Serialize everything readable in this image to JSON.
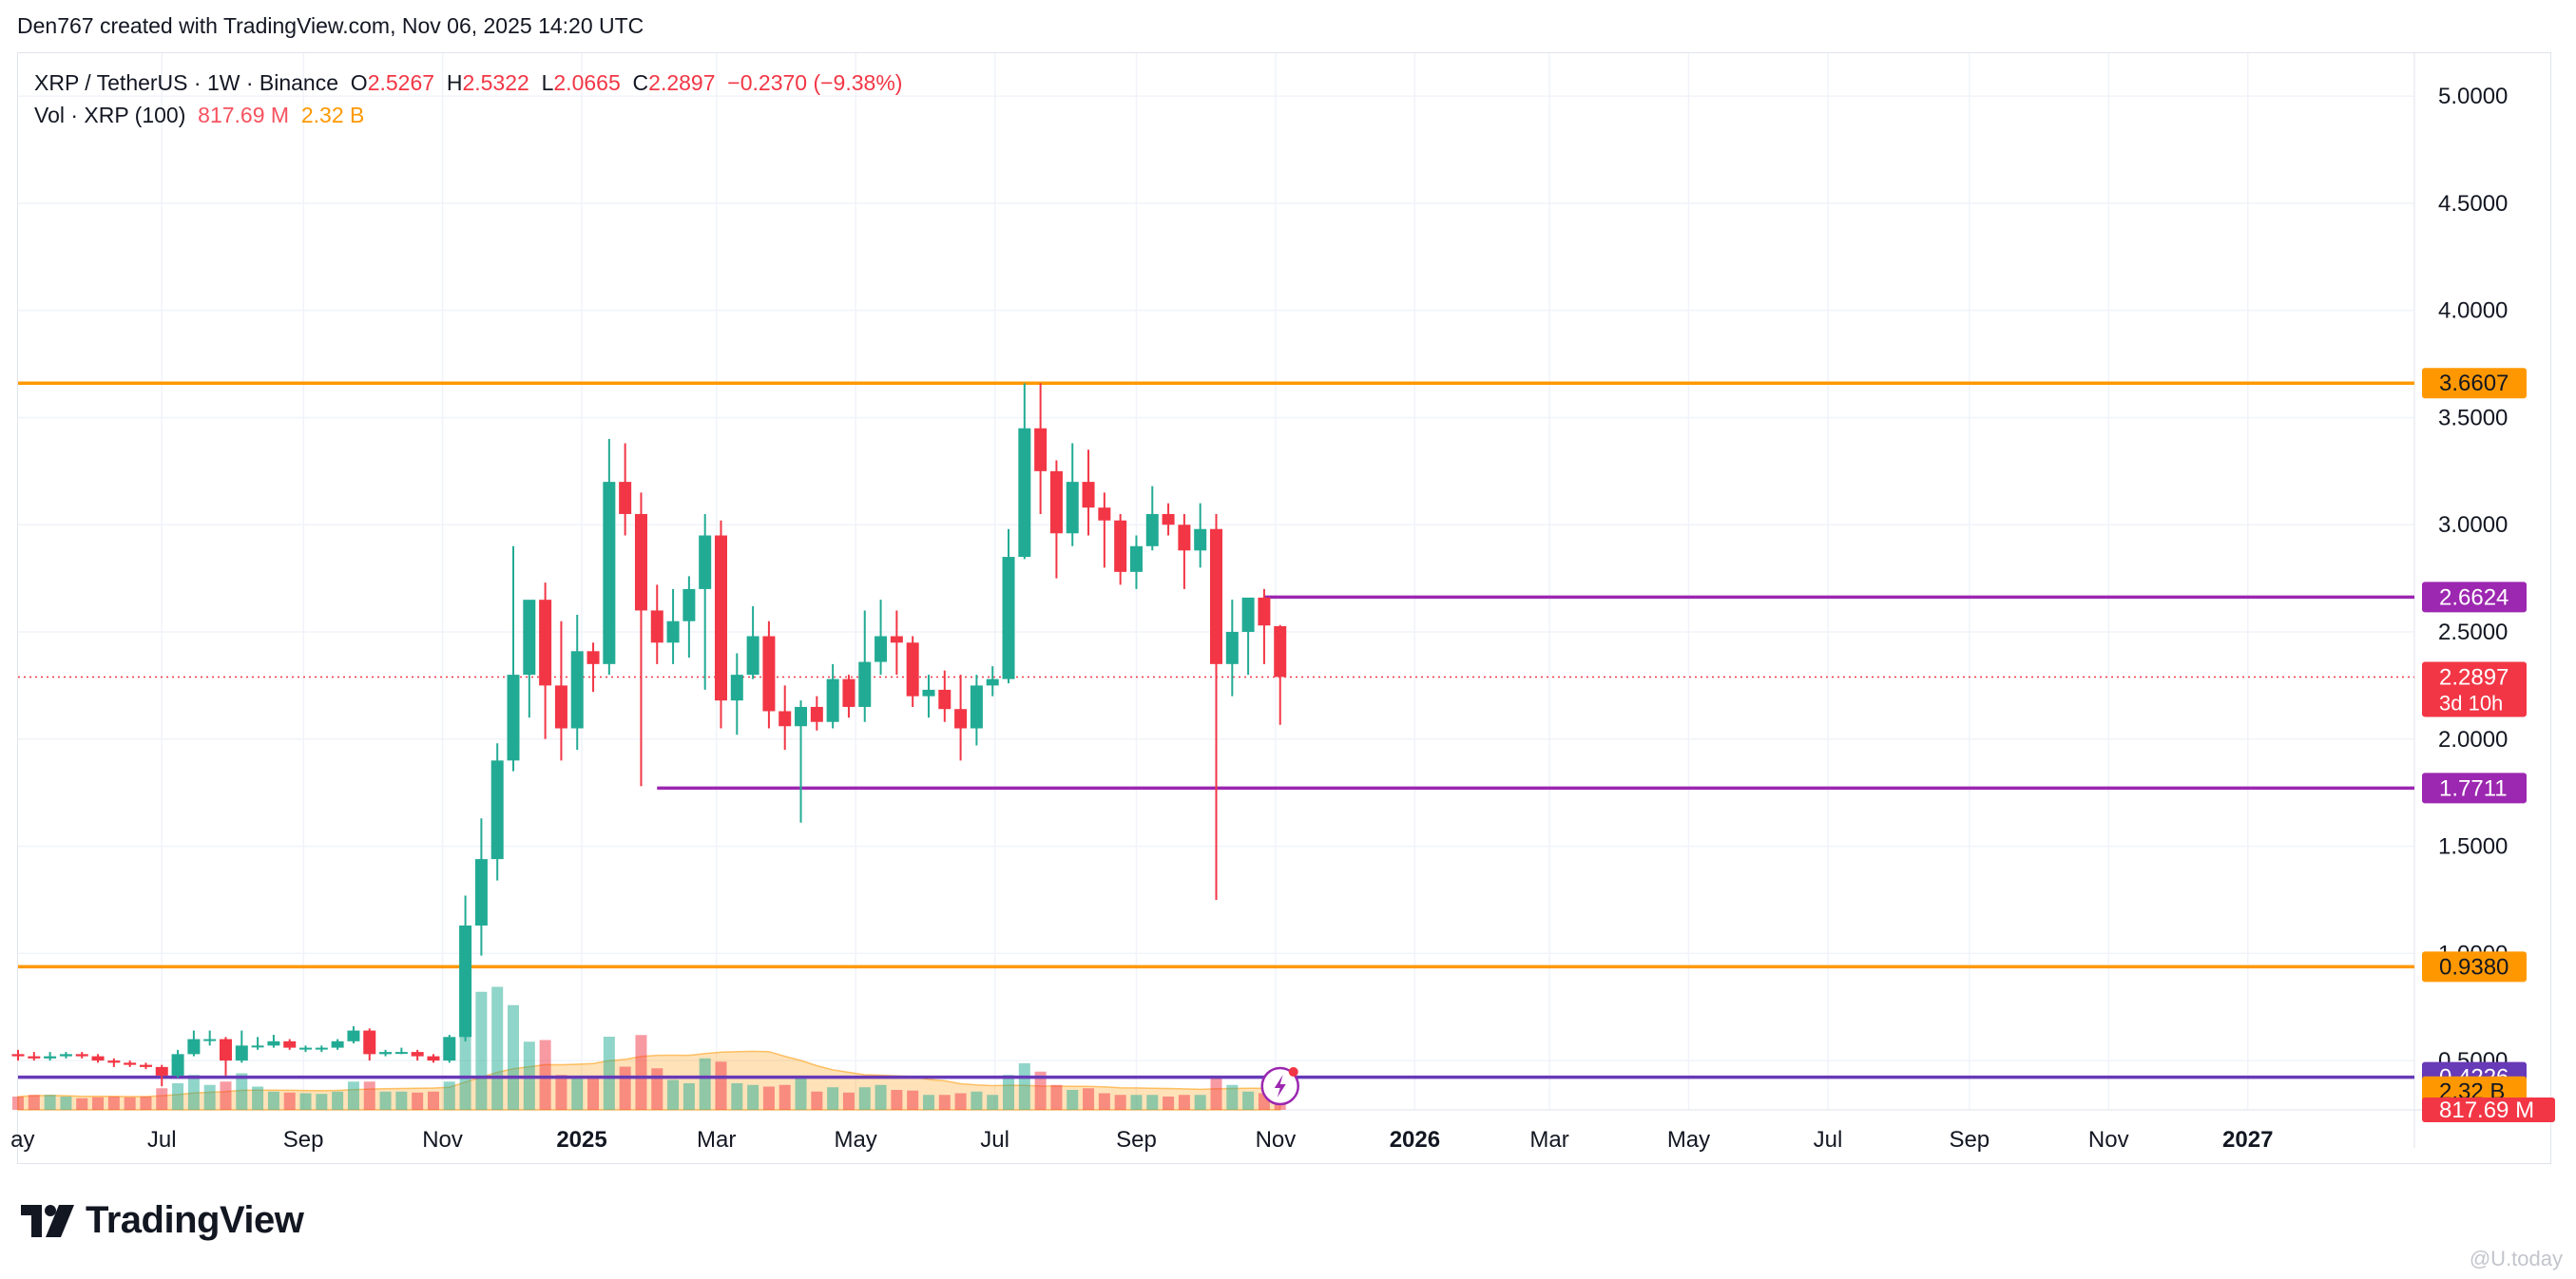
{
  "header": {
    "credit": "Den767 created with TradingView.com, Nov 06, 2025 14:20 UTC"
  },
  "legend": {
    "symbol": "XRP / TetherUS · 1W · Binance",
    "open_label": "O",
    "open": "2.5267",
    "high_label": "H",
    "high": "2.5322",
    "low_label": "L",
    "low": "2.0665",
    "close_label": "C",
    "close": "2.2897",
    "change": "−0.2370 (−9.38%)",
    "volume_label": "Vol · XRP (100)",
    "volume_value": "817.69 M",
    "volume_ma": "2.32 B"
  },
  "branding": {
    "logo_text": "TradingView",
    "watermark": "@U.today"
  },
  "colors": {
    "up": "#22ab94",
    "down": "#f23645",
    "orange": "#ff9800",
    "purple": "#9c27b0",
    "grid": "#f0f3fa"
  },
  "chart_data": {
    "type": "candlestick",
    "symbol": "XRP/USDT",
    "interval": "1W",
    "y_axis": {
      "scale": "linear",
      "ticks": [
        0.5,
        1.0,
        1.5,
        2.0,
        2.5,
        3.0,
        3.5,
        4.0,
        4.5,
        5.0
      ],
      "tick_labels": [
        "0.5000",
        "1.0000",
        "1.5000",
        "2.0000",
        "2.5000",
        "3.0000",
        "3.5000",
        "4.0000",
        "4.5000",
        "5.0000"
      ],
      "range": [
        0.27,
        5.2
      ]
    },
    "x_axis": {
      "labels": [
        {
          "text": "ay",
          "date": "2024-05-01"
        },
        {
          "text": "Jul",
          "date": "2024-07-01"
        },
        {
          "text": "Sep",
          "date": "2024-09-01"
        },
        {
          "text": "Nov",
          "date": "2024-11-01"
        },
        {
          "text": "2025",
          "date": "2025-01-01",
          "bold": true
        },
        {
          "text": "Mar",
          "date": "2025-03-01"
        },
        {
          "text": "May",
          "date": "2025-05-01"
        },
        {
          "text": "Jul",
          "date": "2025-07-01"
        },
        {
          "text": "Sep",
          "date": "2025-09-01"
        },
        {
          "text": "Nov",
          "date": "2025-11-01"
        },
        {
          "text": "2026",
          "date": "2026-01-01",
          "bold": true
        },
        {
          "text": "Mar",
          "date": "2026-03-01"
        },
        {
          "text": "May",
          "date": "2026-05-01"
        },
        {
          "text": "Jul",
          "date": "2026-07-01"
        },
        {
          "text": "Sep",
          "date": "2026-09-01"
        },
        {
          "text": "Nov",
          "date": "2026-11-01"
        },
        {
          "text": "2027",
          "date": "2027-01-01",
          "bold": true
        }
      ],
      "range": [
        "2024-04-29",
        "2027-03-15"
      ]
    },
    "candles": [
      {
        "date": "2024-04-29",
        "o": 0.53,
        "h": 0.55,
        "l": 0.5,
        "c": 0.52,
        "v": 0.4
      },
      {
        "date": "2024-05-06",
        "o": 0.52,
        "h": 0.54,
        "l": 0.5,
        "c": 0.51,
        "v": 0.45
      },
      {
        "date": "2024-05-13",
        "o": 0.51,
        "h": 0.54,
        "l": 0.5,
        "c": 0.52,
        "v": 0.45
      },
      {
        "date": "2024-05-20",
        "o": 0.52,
        "h": 0.54,
        "l": 0.51,
        "c": 0.53,
        "v": 0.4
      },
      {
        "date": "2024-05-27",
        "o": 0.53,
        "h": 0.54,
        "l": 0.51,
        "c": 0.52,
        "v": 0.35
      },
      {
        "date": "2024-06-03",
        "o": 0.52,
        "h": 0.53,
        "l": 0.49,
        "c": 0.5,
        "v": 0.38
      },
      {
        "date": "2024-06-10",
        "o": 0.5,
        "h": 0.51,
        "l": 0.47,
        "c": 0.49,
        "v": 0.4
      },
      {
        "date": "2024-06-17",
        "o": 0.49,
        "h": 0.5,
        "l": 0.47,
        "c": 0.48,
        "v": 0.38
      },
      {
        "date": "2024-06-24",
        "o": 0.48,
        "h": 0.49,
        "l": 0.46,
        "c": 0.47,
        "v": 0.4
      },
      {
        "date": "2024-07-01",
        "o": 0.47,
        "h": 0.48,
        "l": 0.38,
        "c": 0.43,
        "v": 0.65
      },
      {
        "date": "2024-07-08",
        "o": 0.43,
        "h": 0.55,
        "l": 0.42,
        "c": 0.53,
        "v": 0.8
      },
      {
        "date": "2024-07-15",
        "o": 0.53,
        "h": 0.64,
        "l": 0.52,
        "c": 0.6,
        "v": 1.05
      },
      {
        "date": "2024-07-22",
        "o": 0.6,
        "h": 0.64,
        "l": 0.57,
        "c": 0.6,
        "v": 0.75
      },
      {
        "date": "2024-07-29",
        "o": 0.6,
        "h": 0.61,
        "l": 0.43,
        "c": 0.5,
        "v": 0.85
      },
      {
        "date": "2024-08-05",
        "o": 0.5,
        "h": 0.64,
        "l": 0.49,
        "c": 0.57,
        "v": 1.1
      },
      {
        "date": "2024-08-12",
        "o": 0.57,
        "h": 0.61,
        "l": 0.55,
        "c": 0.57,
        "v": 0.7
      },
      {
        "date": "2024-08-19",
        "o": 0.57,
        "h": 0.62,
        "l": 0.56,
        "c": 0.59,
        "v": 0.55
      },
      {
        "date": "2024-08-26",
        "o": 0.59,
        "h": 0.6,
        "l": 0.55,
        "c": 0.56,
        "v": 0.52
      },
      {
        "date": "2024-09-02",
        "o": 0.56,
        "h": 0.57,
        "l": 0.54,
        "c": 0.56,
        "v": 0.5
      },
      {
        "date": "2024-09-09",
        "o": 0.56,
        "h": 0.57,
        "l": 0.54,
        "c": 0.56,
        "v": 0.48
      },
      {
        "date": "2024-09-16",
        "o": 0.56,
        "h": 0.6,
        "l": 0.55,
        "c": 0.59,
        "v": 0.55
      },
      {
        "date": "2024-09-23",
        "o": 0.59,
        "h": 0.66,
        "l": 0.58,
        "c": 0.64,
        "v": 0.85
      },
      {
        "date": "2024-09-30",
        "o": 0.64,
        "h": 0.65,
        "l": 0.5,
        "c": 0.53,
        "v": 0.85
      },
      {
        "date": "2024-10-07",
        "o": 0.53,
        "h": 0.55,
        "l": 0.52,
        "c": 0.54,
        "v": 0.55
      },
      {
        "date": "2024-10-14",
        "o": 0.54,
        "h": 0.56,
        "l": 0.53,
        "c": 0.54,
        "v": 0.55
      },
      {
        "date": "2024-10-21",
        "o": 0.54,
        "h": 0.55,
        "l": 0.5,
        "c": 0.52,
        "v": 0.52
      },
      {
        "date": "2024-10-28",
        "o": 0.52,
        "h": 0.53,
        "l": 0.49,
        "c": 0.5,
        "v": 0.55
      },
      {
        "date": "2024-11-04",
        "o": 0.5,
        "h": 0.62,
        "l": 0.49,
        "c": 0.61,
        "v": 0.85
      },
      {
        "date": "2024-11-11",
        "o": 0.61,
        "h": 1.27,
        "l": 0.59,
        "c": 1.13,
        "v": 3.55
      },
      {
        "date": "2024-11-18",
        "o": 1.13,
        "h": 1.63,
        "l": 0.99,
        "c": 1.44,
        "v": 3.55
      },
      {
        "date": "2024-11-25",
        "o": 1.44,
        "h": 1.98,
        "l": 1.34,
        "c": 1.9,
        "v": 3.7
      },
      {
        "date": "2024-12-02",
        "o": 1.9,
        "h": 2.9,
        "l": 1.85,
        "c": 2.3,
        "v": 3.15
      },
      {
        "date": "2024-12-09",
        "o": 2.3,
        "h": 2.63,
        "l": 2.1,
        "c": 2.65,
        "v": 2.05
      },
      {
        "date": "2024-12-16",
        "o": 2.65,
        "h": 2.73,
        "l": 2.0,
        "c": 2.25,
        "v": 2.1
      },
      {
        "date": "2024-12-23",
        "o": 2.25,
        "h": 2.55,
        "l": 1.9,
        "c": 2.05,
        "v": 1.05
      },
      {
        "date": "2024-12-30",
        "o": 2.05,
        "h": 2.58,
        "l": 1.95,
        "c": 2.41,
        "v": 0.95
      },
      {
        "date": "2025-01-06",
        "o": 2.41,
        "h": 2.45,
        "l": 2.22,
        "c": 2.35,
        "v": 1.0
      },
      {
        "date": "2025-01-13",
        "o": 2.35,
        "h": 3.4,
        "l": 2.3,
        "c": 3.2,
        "v": 2.2
      },
      {
        "date": "2025-01-20",
        "o": 3.2,
        "h": 3.38,
        "l": 2.95,
        "c": 3.05,
        "v": 1.3
      },
      {
        "date": "2025-01-27",
        "o": 3.05,
        "h": 3.15,
        "l": 1.78,
        "c": 2.6,
        "v": 2.25
      },
      {
        "date": "2025-02-03",
        "o": 2.6,
        "h": 2.72,
        "l": 2.35,
        "c": 2.45,
        "v": 1.25
      },
      {
        "date": "2025-02-10",
        "o": 2.45,
        "h": 2.7,
        "l": 2.35,
        "c": 2.55,
        "v": 0.9
      },
      {
        "date": "2025-02-17",
        "o": 2.55,
        "h": 2.76,
        "l": 2.38,
        "c": 2.7,
        "v": 0.8
      },
      {
        "date": "2025-02-24",
        "o": 2.7,
        "h": 3.05,
        "l": 2.23,
        "c": 2.95,
        "v": 1.55
      },
      {
        "date": "2025-03-03",
        "o": 2.95,
        "h": 3.02,
        "l": 2.05,
        "c": 2.18,
        "v": 1.45
      },
      {
        "date": "2025-03-10",
        "o": 2.18,
        "h": 2.4,
        "l": 2.02,
        "c": 2.3,
        "v": 0.8
      },
      {
        "date": "2025-03-17",
        "o": 2.3,
        "h": 2.62,
        "l": 2.28,
        "c": 2.48,
        "v": 0.75
      },
      {
        "date": "2025-03-24",
        "o": 2.48,
        "h": 2.55,
        "l": 2.05,
        "c": 2.13,
        "v": 0.7
      },
      {
        "date": "2025-03-31",
        "o": 2.13,
        "h": 2.25,
        "l": 1.95,
        "c": 2.06,
        "v": 0.75
      },
      {
        "date": "2025-04-07",
        "o": 2.06,
        "h": 2.18,
        "l": 1.61,
        "c": 2.15,
        "v": 1.0
      },
      {
        "date": "2025-04-14",
        "o": 2.15,
        "h": 2.2,
        "l": 2.04,
        "c": 2.08,
        "v": 0.55
      },
      {
        "date": "2025-04-21",
        "o": 2.08,
        "h": 2.35,
        "l": 2.05,
        "c": 2.28,
        "v": 0.68
      },
      {
        "date": "2025-04-28",
        "o": 2.28,
        "h": 2.3,
        "l": 2.1,
        "c": 2.15,
        "v": 0.52
      },
      {
        "date": "2025-05-05",
        "o": 2.15,
        "h": 2.6,
        "l": 2.08,
        "c": 2.36,
        "v": 0.68
      },
      {
        "date": "2025-05-12",
        "o": 2.36,
        "h": 2.65,
        "l": 2.3,
        "c": 2.48,
        "v": 0.75
      },
      {
        "date": "2025-05-19",
        "o": 2.48,
        "h": 2.6,
        "l": 2.3,
        "c": 2.45,
        "v": 0.6
      },
      {
        "date": "2025-05-26",
        "o": 2.45,
        "h": 2.48,
        "l": 2.15,
        "c": 2.2,
        "v": 0.58
      },
      {
        "date": "2025-06-02",
        "o": 2.2,
        "h": 2.3,
        "l": 2.1,
        "c": 2.23,
        "v": 0.45
      },
      {
        "date": "2025-06-09",
        "o": 2.23,
        "h": 2.32,
        "l": 2.08,
        "c": 2.14,
        "v": 0.45
      },
      {
        "date": "2025-06-16",
        "o": 2.14,
        "h": 2.3,
        "l": 1.9,
        "c": 2.05,
        "v": 0.5
      },
      {
        "date": "2025-06-23",
        "o": 2.05,
        "h": 2.3,
        "l": 1.97,
        "c": 2.25,
        "v": 0.55
      },
      {
        "date": "2025-06-30",
        "o": 2.25,
        "h": 2.34,
        "l": 2.2,
        "c": 2.28,
        "v": 0.45
      },
      {
        "date": "2025-07-07",
        "o": 2.28,
        "h": 2.98,
        "l": 2.26,
        "c": 2.85,
        "v": 1.05
      },
      {
        "date": "2025-07-14",
        "o": 2.85,
        "h": 3.66,
        "l": 2.84,
        "c": 3.45,
        "v": 1.4
      },
      {
        "date": "2025-07-21",
        "o": 3.45,
        "h": 3.66,
        "l": 3.05,
        "c": 3.25,
        "v": 1.15
      },
      {
        "date": "2025-07-28",
        "o": 3.25,
        "h": 3.3,
        "l": 2.75,
        "c": 2.96,
        "v": 0.75
      },
      {
        "date": "2025-08-04",
        "o": 2.96,
        "h": 3.38,
        "l": 2.9,
        "c": 3.2,
        "v": 0.6
      },
      {
        "date": "2025-08-11",
        "o": 3.2,
        "h": 3.35,
        "l": 2.95,
        "c": 3.08,
        "v": 0.65
      },
      {
        "date": "2025-08-18",
        "o": 3.08,
        "h": 3.15,
        "l": 2.8,
        "c": 3.02,
        "v": 0.5
      },
      {
        "date": "2025-08-25",
        "o": 3.02,
        "h": 3.05,
        "l": 2.72,
        "c": 2.78,
        "v": 0.45
      },
      {
        "date": "2025-09-01",
        "o": 2.78,
        "h": 2.95,
        "l": 2.7,
        "c": 2.9,
        "v": 0.45
      },
      {
        "date": "2025-09-08",
        "o": 2.9,
        "h": 3.18,
        "l": 2.88,
        "c": 3.05,
        "v": 0.45
      },
      {
        "date": "2025-09-15",
        "o": 3.05,
        "h": 3.1,
        "l": 2.95,
        "c": 3.0,
        "v": 0.4
      },
      {
        "date": "2025-09-22",
        "o": 3.0,
        "h": 3.05,
        "l": 2.7,
        "c": 2.88,
        "v": 0.45
      },
      {
        "date": "2025-09-29",
        "o": 2.88,
        "h": 3.1,
        "l": 2.8,
        "c": 2.98,
        "v": 0.45
      },
      {
        "date": "2025-10-06",
        "o": 2.98,
        "h": 3.05,
        "l": 1.25,
        "c": 2.35,
        "v": 0.95
      },
      {
        "date": "2025-10-13",
        "o": 2.35,
        "h": 2.65,
        "l": 2.2,
        "c": 2.5,
        "v": 0.75
      },
      {
        "date": "2025-10-20",
        "o": 2.5,
        "h": 2.65,
        "l": 2.3,
        "c": 2.66,
        "v": 0.55
      },
      {
        "date": "2025-10-27",
        "o": 2.66,
        "h": 2.7,
        "l": 2.35,
        "c": 2.53,
        "v": 0.5
      },
      {
        "date": "2025-11-03",
        "o": 2.5267,
        "h": 2.5322,
        "l": 2.0665,
        "c": 2.2897,
        "v": 0.82
      }
    ],
    "horizontal_levels": [
      {
        "price": 3.6607,
        "label": "3.6607",
        "color": "#ff9800",
        "start": "2024-04-29"
      },
      {
        "price": 0.938,
        "label": "0.9380",
        "color": "#ff9800",
        "start": "2024-04-29"
      },
      {
        "price": 2.6624,
        "label": "2.6624",
        "color": "#9c27b0",
        "start": "2025-10-27"
      },
      {
        "price": 1.7711,
        "label": "1.7711",
        "color": "#9c27b0",
        "start": "2025-02-03"
      },
      {
        "price": 0.4226,
        "label": "0.4226",
        "color": "#673ab7",
        "start": "2024-04-29"
      }
    ],
    "last_price": {
      "price": 2.2897,
      "label": "2.2897",
      "countdown": "3d 10h"
    },
    "volume_axis_labels": [
      {
        "label": "2.32 B",
        "color": "#ff9800"
      },
      {
        "label": "817.69 M",
        "color": "#f23645"
      }
    ],
    "volume_scale_max": 4.0
  }
}
